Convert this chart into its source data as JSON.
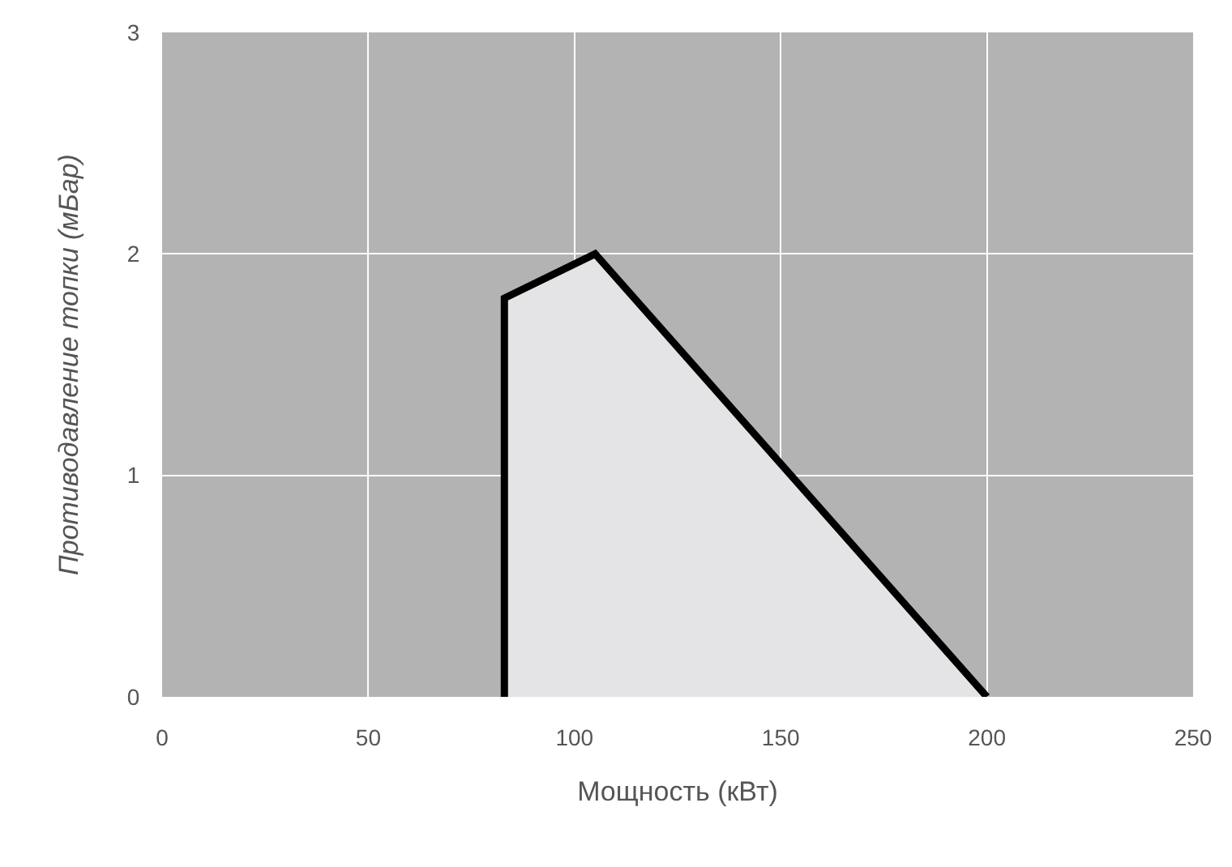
{
  "chart_data": {
    "type": "area",
    "xlabel": "Мощность (кВт)",
    "ylabel": "Противодавление топки (мБар)",
    "x": [
      83,
      83,
      105,
      200
    ],
    "series": [
      {
        "color": "#000000",
        "values": [
          0,
          1.8,
          2,
          0
        ]
      }
    ],
    "xlim": [
      0,
      250
    ],
    "xticks": [
      0,
      50,
      100,
      150,
      200,
      250
    ],
    "ylim": [
      0,
      3
    ],
    "yticks": [
      0,
      1,
      2,
      3
    ],
    "grid": true,
    "marker": "none",
    "line_style": "solid"
  }
}
